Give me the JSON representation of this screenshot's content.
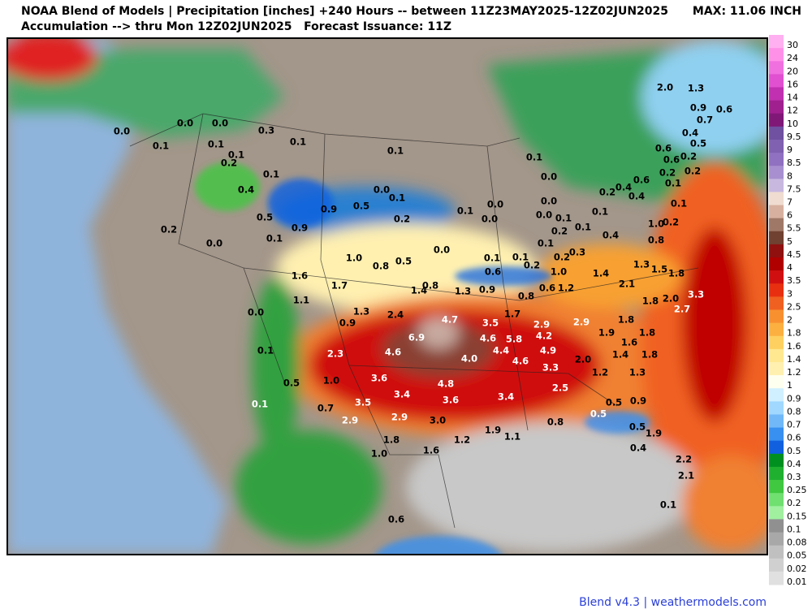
{
  "header": {
    "title_line1": "NOAA Blend of Models | Precipitation [inches] +240 Hours -- between 11Z23MAY2025-12Z02JUN2025",
    "title_line2": "Accumulation --> thru Mon 12Z02JUN2025   Forecast Issuance: 11Z",
    "max": "MAX: 11.06 INCH"
  },
  "colorbar": {
    "labels": [
      "30",
      "24",
      "20",
      "16",
      "14",
      "12",
      "10",
      "9.5",
      "9",
      "8.5",
      "8",
      "7.5",
      "7",
      "6",
      "5.5",
      "5",
      "4.5",
      "4",
      "3.5",
      "3",
      "2.5",
      "2",
      "1.8",
      "1.6",
      "1.4",
      "1.2",
      "1",
      "0.9",
      "0.8",
      "0.7",
      "0.6",
      "0.5",
      "0.4",
      "0.3",
      "0.25",
      "0.2",
      "0.15",
      "0.1",
      "0.08",
      "0.05",
      "0.02",
      "0.01"
    ]
  },
  "map": {
    "labels": [
      "0.0",
      "0.0",
      "0.0",
      "0.3",
      "0.1",
      "0.1",
      "0.1",
      "0.1",
      "0.2",
      "0.1",
      "0.1",
      "0.4",
      "0.5",
      "0.9",
      "0.1",
      "0.2",
      "0.0",
      "0.9",
      "0.5",
      "0.0",
      "0.1",
      "0.2",
      "0.1",
      "0.0",
      "0.0",
      "0.0",
      "0.1",
      "0.6",
      "0.1",
      "0.2",
      "0.2",
      "0.3",
      "1.0",
      "0.1",
      "0.0",
      "0.0",
      "0.0",
      "0.1",
      "0.2",
      "0.1",
      "0.1",
      "0.1",
      "0.4",
      "0.2",
      "0.4",
      "0.4",
      "0.6",
      "0.2",
      "0.6",
      "0.1",
      "0.2",
      "0.1",
      "0.2",
      "1.0",
      "0.8",
      "0.6",
      "0.4",
      "0.2",
      "0.5",
      "0.7",
      "0.9",
      "0.6",
      "1.3",
      "2.0",
      "1.0",
      "0.8",
      "0.5",
      "1.6",
      "1.7",
      "1.1",
      "1.4",
      "0.8",
      "1.3",
      "0.9",
      "0.8",
      "0.6",
      "1.2",
      "1.4",
      "2.1",
      "1.3",
      "1.5",
      "1.8",
      "3.3",
      "2.0",
      "2.7",
      "1.8",
      "0.0",
      "0.9",
      "1.3",
      "2.4",
      "4.7",
      "3.5",
      "1.7",
      "2.9",
      "2.9",
      "1.8",
      "1.9",
      "1.8",
      "1.6",
      "1.4",
      "1.8",
      "6.9",
      "4.6",
      "5.8",
      "4.2",
      "0.1",
      "2.3",
      "4.6",
      "4.0",
      "4.4",
      "4.6",
      "4.9",
      "2.0",
      "1.2",
      "1.3",
      "3.3",
      "1.0",
      "3.6",
      "4.8",
      "2.5",
      "0.5",
      "3.4",
      "3.6",
      "3.4",
      "0.5",
      "0.9",
      "0.1",
      "0.7",
      "3.5",
      "0.5",
      "2.9",
      "2.9",
      "3.0",
      "0.8",
      "0.5",
      "1.9",
      "1.9",
      "1.1",
      "1.8",
      "1.2",
      "0.4",
      "1.0",
      "1.6",
      "2.2",
      "2.1",
      "0.1",
      "0.6"
    ]
  },
  "footer": "Blend v4.3 | weathermodels.com"
}
